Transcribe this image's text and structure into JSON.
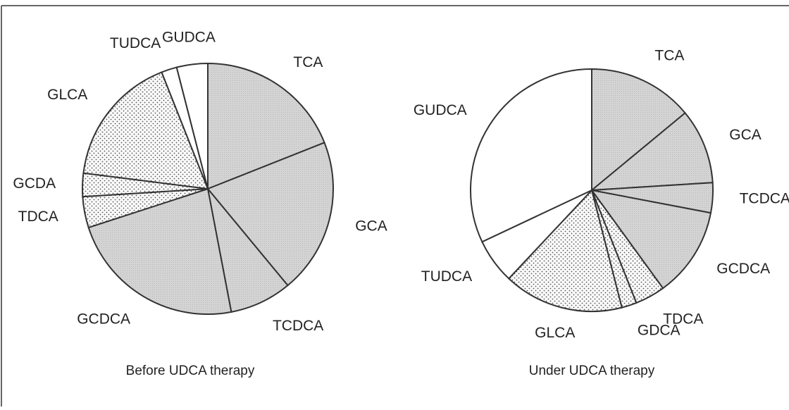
{
  "chart_data": [
    {
      "type": "pie",
      "title": "Before UDCA therapy",
      "categories": [
        "TCA",
        "GCA",
        "TCDCA",
        "GCDCA",
        "TDCA",
        "GCDA",
        "GLCA",
        "TUDCA",
        "GUDCA"
      ],
      "values": [
        19,
        20,
        8,
        23,
        4,
        3,
        17,
        2,
        4
      ],
      "fills": [
        "shaded",
        "shaded",
        "shaded",
        "shaded",
        "dotted",
        "dotted",
        "dotted",
        "white",
        "white"
      ]
    },
    {
      "type": "pie",
      "title": "Under UDCA therapy",
      "categories": [
        "TCA",
        "GCA",
        "TCDCA",
        "GCDCA",
        "TDCA",
        "GDCA",
        "GLCA",
        "TUDCA",
        "GUDCA"
      ],
      "values": [
        14,
        10,
        4,
        12,
        4,
        2,
        16,
        6,
        32
      ],
      "fills": [
        "shaded",
        "shaded",
        "shaded",
        "shaded",
        "dotted",
        "dotted",
        "dotted",
        "white",
        "white"
      ]
    }
  ]
}
